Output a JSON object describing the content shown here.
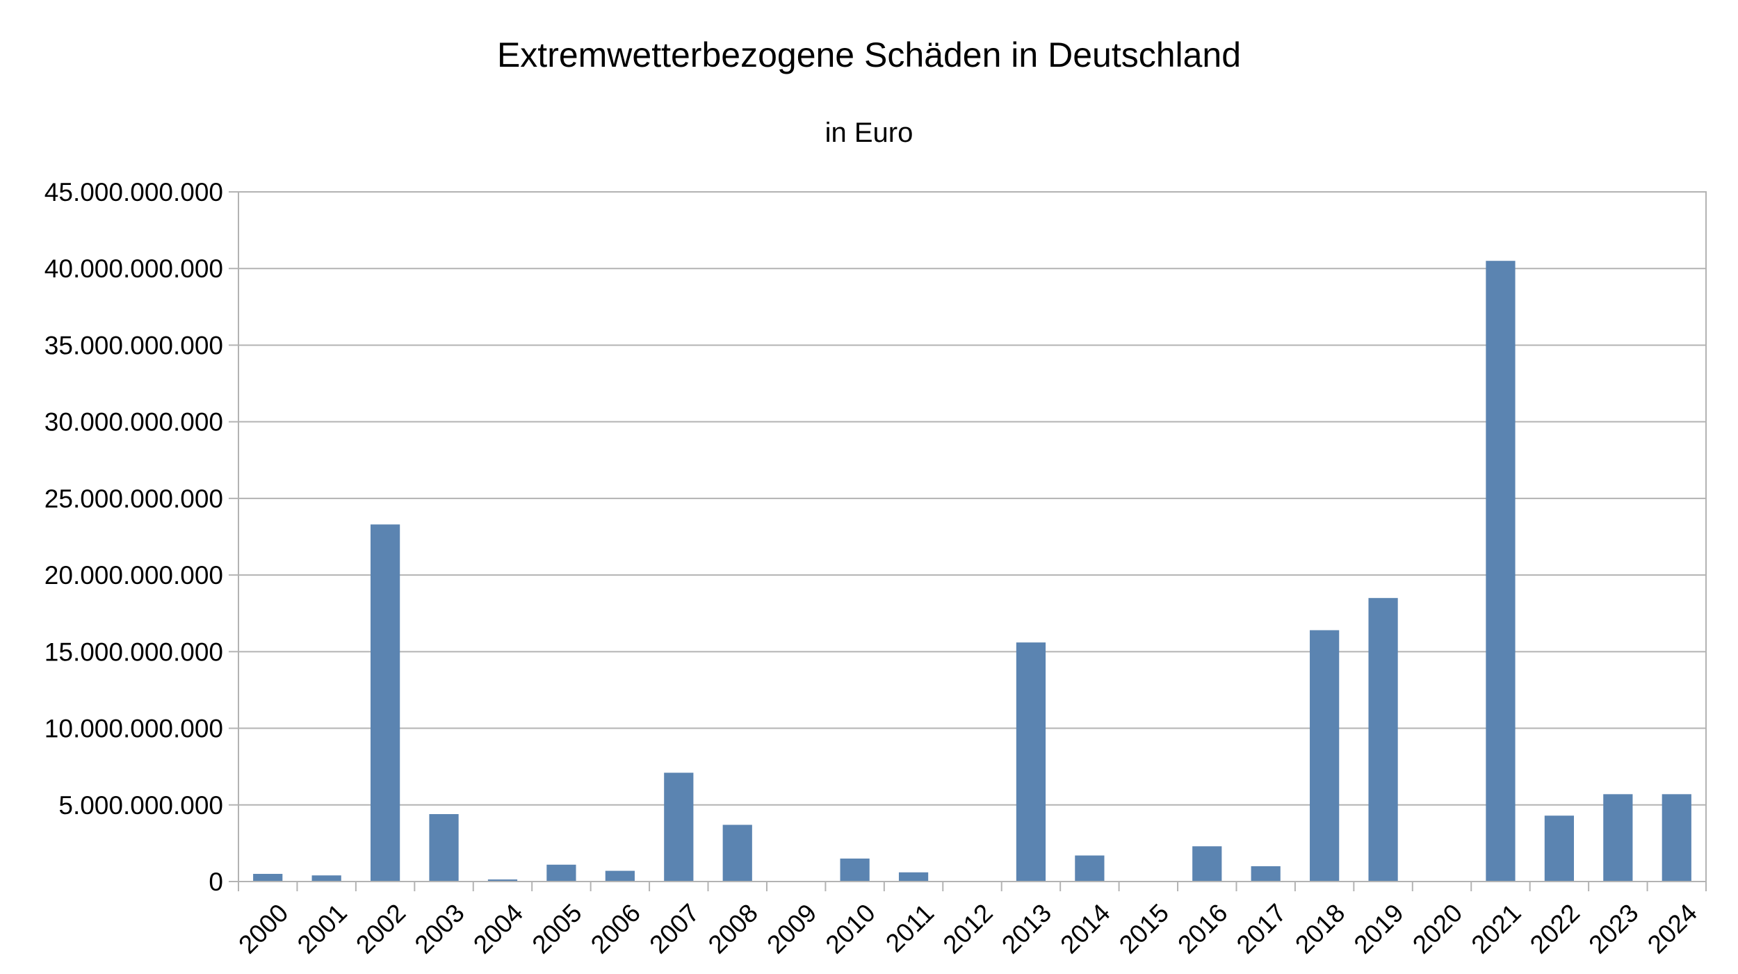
{
  "chart_data": {
    "type": "bar",
    "title": "Extremwetterbezogene Schäden in Deutschland",
    "subtitle": "in Euro",
    "xlabel": "",
    "ylabel": "",
    "categories": [
      "2000",
      "2001",
      "2002",
      "2003",
      "2004",
      "2005",
      "2006",
      "2007",
      "2008",
      "2009",
      "2010",
      "2011",
      "2012",
      "2013",
      "2014",
      "2015",
      "2016",
      "2017",
      "2018",
      "2019",
      "2020",
      "2021",
      "2022",
      "2023",
      "2024"
    ],
    "values": [
      500000000,
      400000000,
      23300000000,
      4400000000,
      100000000,
      1100000000,
      700000000,
      7100000000,
      3700000000,
      0,
      1500000000,
      600000000,
      0,
      15600000000,
      1700000000,
      0,
      2300000000,
      1000000000,
      16400000000,
      18500000000,
      0,
      40500000000,
      4300000000,
      5700000000,
      5700000000
    ],
    "ylim": [
      0,
      45000000000
    ],
    "yticks": [
      {
        "value": 0,
        "label": "0"
      },
      {
        "value": 5000000000,
        "label": "5.000.000.000"
      },
      {
        "value": 10000000000,
        "label": "10.000.000.000"
      },
      {
        "value": 15000000000,
        "label": "15.000.000.000"
      },
      {
        "value": 20000000000,
        "label": "20.000.000.000"
      },
      {
        "value": 25000000000,
        "label": "25.000.000.000"
      },
      {
        "value": 30000000000,
        "label": "30.000.000.000"
      },
      {
        "value": 35000000000,
        "label": "35.000.000.000"
      },
      {
        "value": 40000000000,
        "label": "40.000.000.000"
      },
      {
        "value": 45000000000,
        "label": "45.000.000.000"
      }
    ],
    "grid": true,
    "legend": "none",
    "colors": {
      "bar": "#5b84b1",
      "grid": "#b3b3b3",
      "axis": "#b3b3b3"
    }
  }
}
